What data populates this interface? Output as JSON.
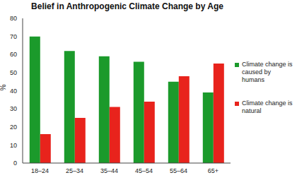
{
  "chart_data": {
    "type": "bar",
    "title": "Belief in Anthropogenic Climate Change by Age",
    "y_label": "%",
    "categories": [
      "18–24",
      "25–34",
      "35–44",
      "45–54",
      "55–64",
      "65+"
    ],
    "series": [
      {
        "name": "Climate change is caused by humans",
        "color": "#1b9a2b",
        "values": [
          70,
          62,
          59,
          56,
          45,
          39
        ]
      },
      {
        "name": "Climate change is natural",
        "color": "#e8231c",
        "values": [
          16,
          25,
          31,
          34,
          48,
          55
        ]
      }
    ],
    "ylim": [
      0,
      80
    ],
    "yticks": [
      0,
      10,
      20,
      30,
      40,
      50,
      60,
      70,
      80
    ],
    "grid": false,
    "legend": "right"
  }
}
